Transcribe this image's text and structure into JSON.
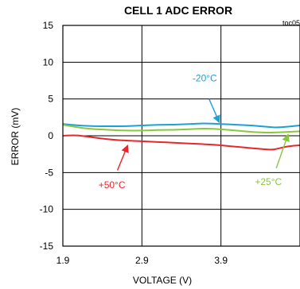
{
  "chart_data": {
    "type": "line",
    "title": "CELL 1 ADC ERROR",
    "tag": "toc05",
    "xlabel": "VOLTAGE (V)",
    "ylabel": "ERROR (mV)",
    "xlim": [
      1.9,
      4.9
    ],
    "ylim": [
      -15,
      15
    ],
    "xticks": [
      "1.9",
      "2.9",
      "3.9"
    ],
    "xtick_values": [
      1.9,
      2.9,
      3.9
    ],
    "yticks": [
      "15",
      "10",
      "5",
      "0",
      "-5",
      "-10",
      "-15"
    ],
    "ytick_values": [
      15,
      10,
      5,
      0,
      -5,
      -10,
      -15
    ],
    "grid": true,
    "series": [
      {
        "name": "-20°C",
        "color": "#1ba0d8",
        "x": [
          1.9,
          2.1,
          2.3,
          2.5,
          2.7,
          2.9,
          3.1,
          3.3,
          3.5,
          3.7,
          3.9,
          4.1,
          4.3,
          4.5,
          4.6,
          4.8,
          4.9
        ],
        "y": [
          1.6,
          1.4,
          1.3,
          1.3,
          1.3,
          1.4,
          1.5,
          1.5,
          1.6,
          1.7,
          1.6,
          1.5,
          1.4,
          1.2,
          1.1,
          1.3,
          1.4
        ]
      },
      {
        "name": "+25°C",
        "color": "#8cc63f",
        "x": [
          1.9,
          2.1,
          2.3,
          2.5,
          2.7,
          2.9,
          3.1,
          3.3,
          3.5,
          3.7,
          3.9,
          4.1,
          4.3,
          4.5,
          4.7,
          4.9
        ],
        "y": [
          1.5,
          1.1,
          0.9,
          0.8,
          0.7,
          0.7,
          0.8,
          0.8,
          0.9,
          1.0,
          0.9,
          0.7,
          0.5,
          0.4,
          0.5,
          0.6
        ]
      },
      {
        "name": "+50°C",
        "color": "#e8262b",
        "x": [
          1.9,
          2.05,
          2.2,
          2.4,
          2.6,
          2.8,
          3.0,
          3.2,
          3.4,
          3.6,
          3.8,
          4.0,
          4.2,
          4.4,
          4.55,
          4.6,
          4.75,
          4.9
        ],
        "y": [
          0.0,
          0.1,
          -0.1,
          -0.4,
          -0.6,
          -0.7,
          -0.8,
          -0.9,
          -1.0,
          -1.1,
          -1.2,
          -1.4,
          -1.6,
          -1.8,
          -1.9,
          -1.8,
          -1.4,
          -1.3
        ]
      }
    ],
    "annotations": [
      {
        "text": "-20°C",
        "series": 0,
        "label_x": 3.54,
        "label_y": 7.4,
        "arrow_from": [
          3.75,
          5.0
        ],
        "arrow_to": [
          3.88,
          1.8
        ]
      },
      {
        "text": "+25°C",
        "series": 1,
        "label_x": 4.33,
        "label_y": -6.7,
        "arrow_from": [
          4.6,
          -4.4
        ],
        "arrow_to": [
          4.75,
          0.2
        ]
      },
      {
        "text": "+50°C",
        "series": 2,
        "label_x": 2.35,
        "label_y": -7.1,
        "arrow_from": [
          2.59,
          -4.7
        ],
        "arrow_to": [
          2.72,
          -1.3
        ]
      }
    ]
  }
}
